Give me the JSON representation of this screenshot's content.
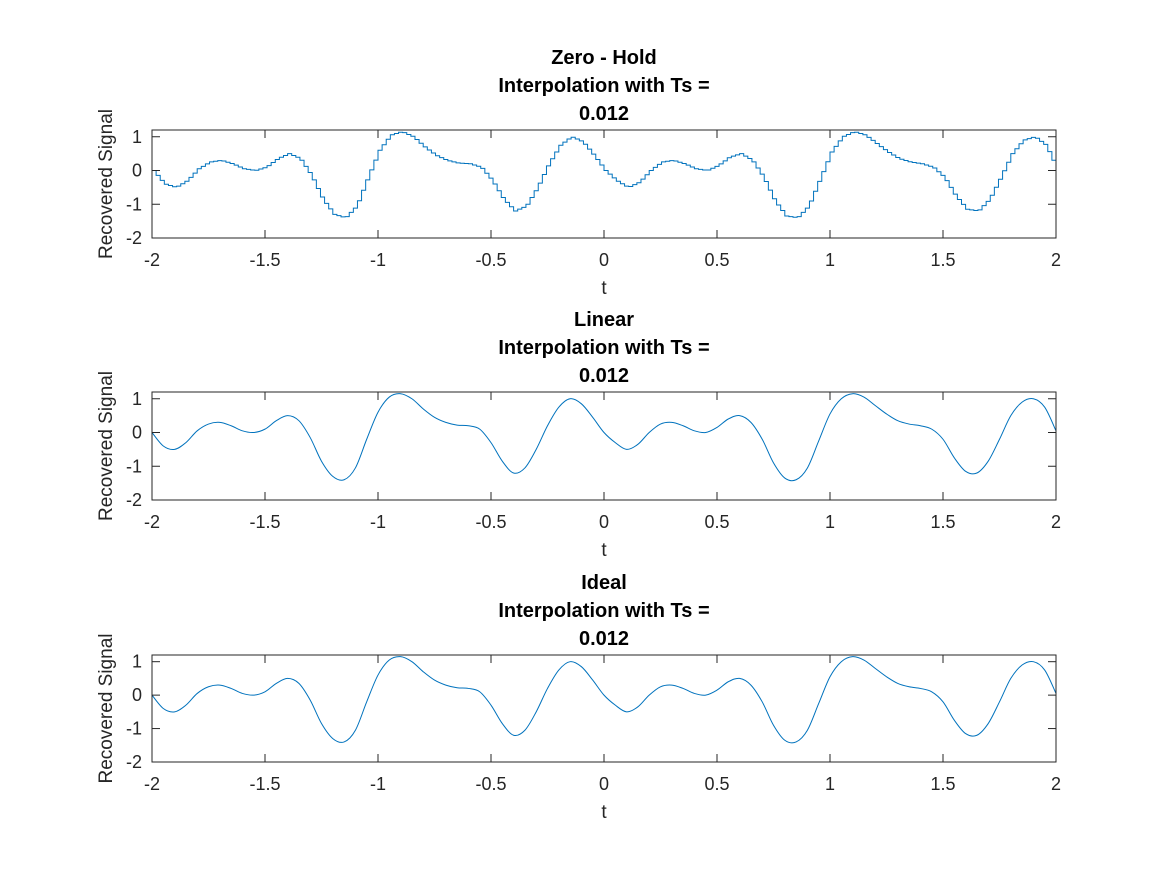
{
  "chart_data": [
    {
      "type": "line",
      "style": "stairs",
      "title": [
        "Zero - Hold",
        "Interpolation with Ts =",
        "0.012"
      ],
      "xlabel": "t",
      "ylabel": "Recovered Signal",
      "xlim": [
        -2,
        2
      ],
      "ylim": [
        -2,
        1.2
      ],
      "xticks": [
        -2,
        -1.5,
        -1,
        -0.5,
        0,
        0.5,
        1,
        1.5,
        2
      ],
      "xtick_labels": [
        "-2",
        "-1.5",
        "-1",
        "-0.5",
        "0",
        "0.5",
        "1",
        "1.5",
        "2"
      ],
      "yticks": [
        -2,
        -1,
        0,
        1
      ],
      "ytick_labels": [
        "-2",
        "-1",
        "0",
        "1"
      ],
      "color": "#0072BD",
      "series": [
        {
          "x": [
            -2.0,
            -1.95,
            -1.9,
            -1.85,
            -1.8,
            -1.75,
            -1.7,
            -1.65,
            -1.6,
            -1.55,
            -1.5,
            -1.45,
            -1.4,
            -1.35,
            -1.3,
            -1.25,
            -1.2,
            -1.15,
            -1.1,
            -1.05,
            -1.0,
            -0.95,
            -0.9,
            -0.85,
            -0.8,
            -0.75,
            -0.7,
            -0.65,
            -0.6,
            -0.55,
            -0.5,
            -0.45,
            -0.4,
            -0.35,
            -0.3,
            -0.25,
            -0.2,
            -0.15,
            -0.1,
            -0.05,
            0.0,
            0.05,
            0.1,
            0.15,
            0.2,
            0.25,
            0.3,
            0.35,
            0.4,
            0.45,
            0.5,
            0.55,
            0.6,
            0.65,
            0.7,
            0.75,
            0.8,
            0.85,
            0.9,
            0.95,
            1.0,
            1.05,
            1.1,
            1.15,
            1.2,
            1.25,
            1.3,
            1.35,
            1.4,
            1.45,
            1.5,
            1.55,
            1.6,
            1.65,
            1.7,
            1.75,
            1.8,
            1.85,
            1.9,
            1.95,
            2.0
          ],
          "y": [
            0.0,
            -0.4,
            -0.5,
            -0.3,
            0.05,
            0.25,
            0.3,
            0.2,
            0.05,
            0.0,
            0.1,
            0.35,
            0.5,
            0.35,
            -0.15,
            -0.85,
            -1.3,
            -1.4,
            -1.05,
            -0.2,
            0.6,
            1.05,
            1.15,
            1.0,
            0.7,
            0.45,
            0.3,
            0.22,
            0.2,
            0.1,
            -0.3,
            -0.85,
            -1.2,
            -1.05,
            -0.5,
            0.2,
            0.75,
            1.0,
            0.85,
            0.45,
            0.0,
            -0.3,
            -0.5,
            -0.35,
            0.0,
            0.25,
            0.3,
            0.2,
            0.05,
            0.0,
            0.15,
            0.4,
            0.5,
            0.3,
            -0.2,
            -0.9,
            -1.35,
            -1.4,
            -1.05,
            -0.25,
            0.55,
            1.0,
            1.15,
            1.05,
            0.8,
            0.55,
            0.35,
            0.25,
            0.2,
            0.1,
            -0.2,
            -0.75,
            -1.15,
            -1.2,
            -0.85,
            -0.2,
            0.5,
            0.9,
            1.0,
            0.75,
            0.05
          ]
        }
      ]
    },
    {
      "type": "line",
      "title": [
        "Linear",
        "Interpolation with Ts =",
        "0.012"
      ],
      "xlabel": "t",
      "ylabel": "Recovered Signal",
      "xlim": [
        -2,
        2
      ],
      "ylim": [
        -2,
        1.2
      ],
      "xticks": [
        -2,
        -1.5,
        -1,
        -0.5,
        0,
        0.5,
        1,
        1.5,
        2
      ],
      "xtick_labels": [
        "-2",
        "-1.5",
        "-1",
        "-0.5",
        "0",
        "0.5",
        "1",
        "1.5",
        "2"
      ],
      "yticks": [
        -2,
        -1,
        0,
        1
      ],
      "ytick_labels": [
        "-2",
        "-1",
        "0",
        "1"
      ],
      "color": "#0072BD",
      "series": [
        {
          "x": [
            -2.0,
            -1.95,
            -1.9,
            -1.85,
            -1.8,
            -1.75,
            -1.7,
            -1.65,
            -1.6,
            -1.55,
            -1.5,
            -1.45,
            -1.4,
            -1.35,
            -1.3,
            -1.25,
            -1.2,
            -1.15,
            -1.1,
            -1.05,
            -1.0,
            -0.95,
            -0.9,
            -0.85,
            -0.8,
            -0.75,
            -0.7,
            -0.65,
            -0.6,
            -0.55,
            -0.5,
            -0.45,
            -0.4,
            -0.35,
            -0.3,
            -0.25,
            -0.2,
            -0.15,
            -0.1,
            -0.05,
            0.0,
            0.05,
            0.1,
            0.15,
            0.2,
            0.25,
            0.3,
            0.35,
            0.4,
            0.45,
            0.5,
            0.55,
            0.6,
            0.65,
            0.7,
            0.75,
            0.8,
            0.85,
            0.9,
            0.95,
            1.0,
            1.05,
            1.1,
            1.15,
            1.2,
            1.25,
            1.3,
            1.35,
            1.4,
            1.45,
            1.5,
            1.55,
            1.6,
            1.65,
            1.7,
            1.75,
            1.8,
            1.85,
            1.9,
            1.95,
            2.0
          ],
          "y": [
            0.0,
            -0.4,
            -0.5,
            -0.3,
            0.05,
            0.25,
            0.3,
            0.2,
            0.05,
            0.0,
            0.1,
            0.35,
            0.5,
            0.35,
            -0.15,
            -0.85,
            -1.3,
            -1.4,
            -1.05,
            -0.2,
            0.6,
            1.05,
            1.15,
            1.0,
            0.7,
            0.45,
            0.3,
            0.22,
            0.2,
            0.1,
            -0.3,
            -0.85,
            -1.2,
            -1.05,
            -0.5,
            0.2,
            0.75,
            1.0,
            0.85,
            0.45,
            0.0,
            -0.3,
            -0.5,
            -0.35,
            0.0,
            0.25,
            0.3,
            0.2,
            0.05,
            0.0,
            0.15,
            0.4,
            0.5,
            0.3,
            -0.2,
            -0.9,
            -1.35,
            -1.4,
            -1.05,
            -0.25,
            0.55,
            1.0,
            1.15,
            1.05,
            0.8,
            0.55,
            0.35,
            0.25,
            0.2,
            0.1,
            -0.2,
            -0.75,
            -1.15,
            -1.2,
            -0.85,
            -0.2,
            0.5,
            0.9,
            1.0,
            0.75,
            0.05
          ]
        }
      ]
    },
    {
      "type": "line",
      "title": [
        "Ideal",
        "Interpolation with Ts =",
        "0.012"
      ],
      "xlabel": "t",
      "ylabel": "Recovered Signal",
      "xlim": [
        -2,
        2
      ],
      "ylim": [
        -2,
        1.2
      ],
      "xticks": [
        -2,
        -1.5,
        -1,
        -0.5,
        0,
        0.5,
        1,
        1.5,
        2
      ],
      "xtick_labels": [
        "-2",
        "-1.5",
        "-1",
        "-0.5",
        "0",
        "0.5",
        "1",
        "1.5",
        "2"
      ],
      "yticks": [
        -2,
        -1,
        0,
        1
      ],
      "ytick_labels": [
        "-2",
        "-1",
        "0",
        "1"
      ],
      "color": "#0072BD",
      "series": [
        {
          "x": [
            -2.0,
            -1.95,
            -1.9,
            -1.85,
            -1.8,
            -1.75,
            -1.7,
            -1.65,
            -1.6,
            -1.55,
            -1.5,
            -1.45,
            -1.4,
            -1.35,
            -1.3,
            -1.25,
            -1.2,
            -1.15,
            -1.1,
            -1.05,
            -1.0,
            -0.95,
            -0.9,
            -0.85,
            -0.8,
            -0.75,
            -0.7,
            -0.65,
            -0.6,
            -0.55,
            -0.5,
            -0.45,
            -0.4,
            -0.35,
            -0.3,
            -0.25,
            -0.2,
            -0.15,
            -0.1,
            -0.05,
            0.0,
            0.05,
            0.1,
            0.15,
            0.2,
            0.25,
            0.3,
            0.35,
            0.4,
            0.45,
            0.5,
            0.55,
            0.6,
            0.65,
            0.7,
            0.75,
            0.8,
            0.85,
            0.9,
            0.95,
            1.0,
            1.05,
            1.1,
            1.15,
            1.2,
            1.25,
            1.3,
            1.35,
            1.4,
            1.45,
            1.5,
            1.55,
            1.6,
            1.65,
            1.7,
            1.75,
            1.8,
            1.85,
            1.9,
            1.95,
            2.0
          ],
          "y": [
            0.0,
            -0.4,
            -0.5,
            -0.3,
            0.05,
            0.25,
            0.3,
            0.2,
            0.05,
            0.0,
            0.1,
            0.35,
            0.5,
            0.35,
            -0.15,
            -0.85,
            -1.3,
            -1.4,
            -1.05,
            -0.2,
            0.6,
            1.05,
            1.15,
            1.0,
            0.7,
            0.45,
            0.3,
            0.22,
            0.2,
            0.1,
            -0.3,
            -0.85,
            -1.2,
            -1.05,
            -0.5,
            0.2,
            0.75,
            1.0,
            0.85,
            0.45,
            0.0,
            -0.3,
            -0.5,
            -0.35,
            0.0,
            0.25,
            0.3,
            0.2,
            0.05,
            0.0,
            0.15,
            0.4,
            0.5,
            0.3,
            -0.2,
            -0.9,
            -1.35,
            -1.4,
            -1.05,
            -0.25,
            0.55,
            1.0,
            1.15,
            1.05,
            0.8,
            0.55,
            0.35,
            0.25,
            0.2,
            0.1,
            -0.2,
            -0.75,
            -1.15,
            -1.2,
            -0.85,
            -0.2,
            0.5,
            0.9,
            1.0,
            0.75,
            0.05
          ]
        }
      ]
    }
  ]
}
